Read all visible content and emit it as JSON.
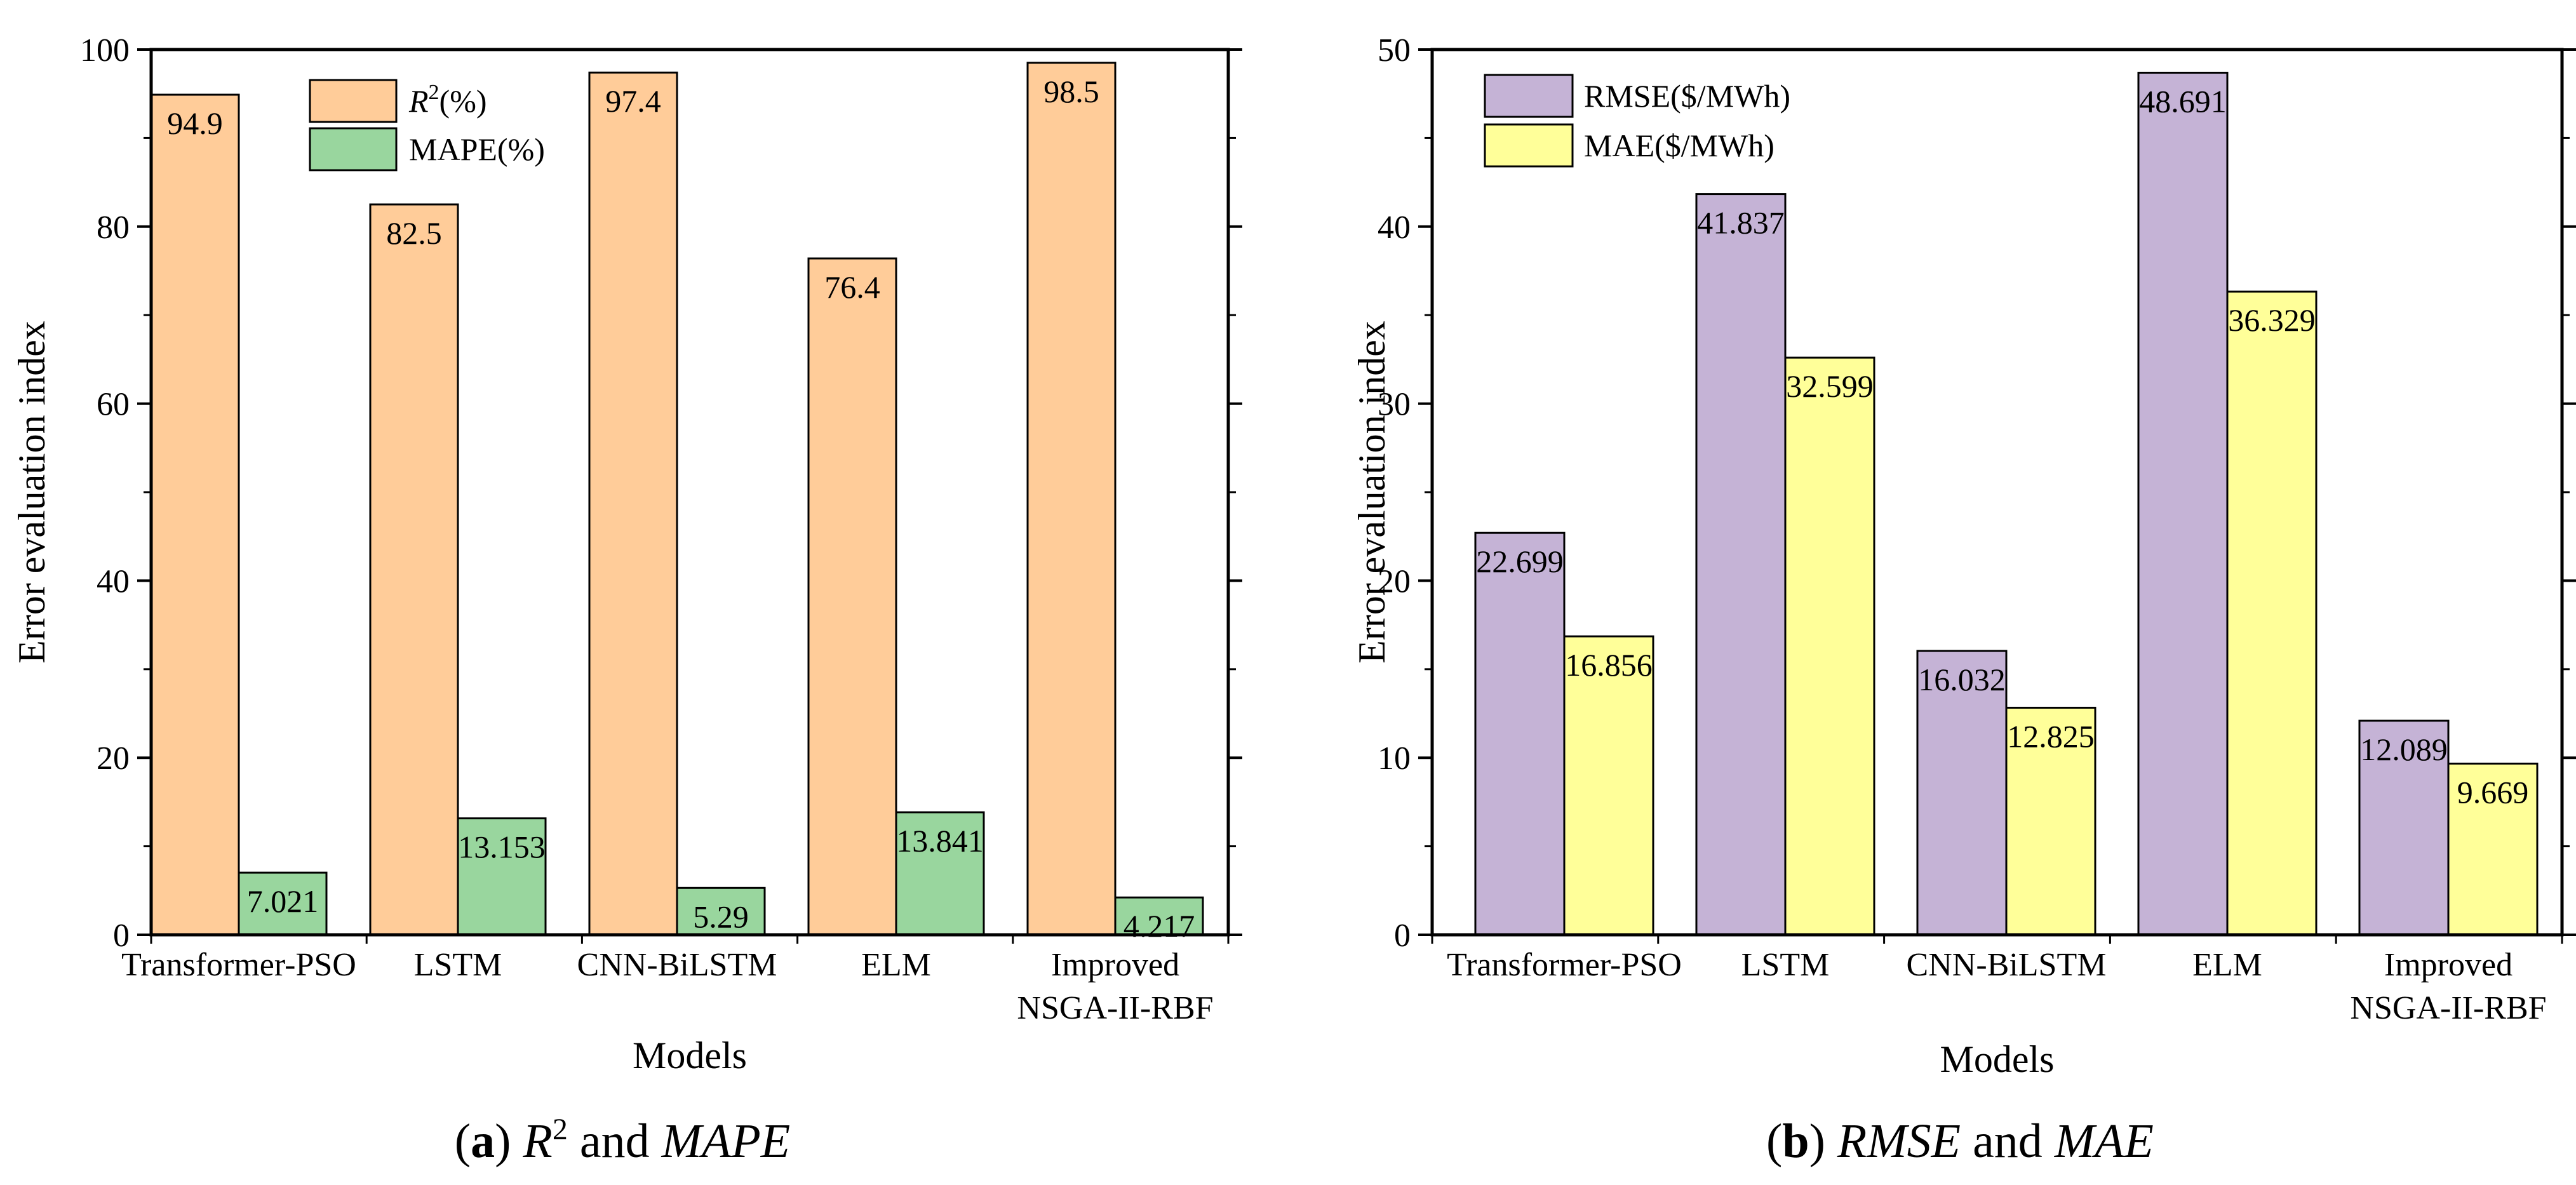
{
  "chart_data": [
    {
      "type": "bar",
      "panel": "a",
      "categories": [
        "Transformer-PSO",
        "LSTM",
        "CNN-BiLSTM",
        "ELM",
        "Improved\nNSGA-II-RBF"
      ],
      "series": [
        {
          "name": "R2(%)",
          "legend_base": "R",
          "legend_sup": "2",
          "legend_tail": "(%)",
          "color": "#FFCC99",
          "values": [
            94.9,
            82.5,
            97.4,
            76.4,
            98.5
          ],
          "labels": [
            "94.9",
            "82.5",
            "97.4",
            "76.4",
            "98.5"
          ]
        },
        {
          "name": "MAPE(%)",
          "color": "#99D69E",
          "values": [
            7.021,
            13.153,
            5.29,
            13.841,
            4.217
          ],
          "labels": [
            "7.021",
            "13.153",
            "5.29",
            "13.841",
            "4.217"
          ]
        }
      ],
      "xlabel": "Models",
      "ylabel": "Error evaluation index",
      "ylim": [
        0,
        100
      ],
      "yticks": [
        0,
        20,
        40,
        60,
        80,
        100
      ],
      "legend": "top-center",
      "caption": {
        "letter": "a",
        "pre": "R",
        "sup": "2",
        "mid": " and ",
        "italic": "MAPE"
      }
    },
    {
      "type": "bar",
      "panel": "b",
      "categories": [
        "Transformer-PSO",
        "LSTM",
        "CNN-BiLSTM",
        "ELM",
        "Improved\nNSGA-II-RBF"
      ],
      "series": [
        {
          "name": "RMSE($/MWh)",
          "color": "#C5B3D6",
          "values": [
            22.699,
            41.837,
            16.032,
            48.691,
            12.089
          ],
          "labels": [
            "22.699",
            "41.837",
            "16.032",
            "48.691",
            "12.089"
          ]
        },
        {
          "name": "MAE($/MWh)",
          "color": "#FFFF99",
          "values": [
            16.856,
            32.599,
            12.825,
            36.329,
            9.669
          ],
          "labels": [
            "16.856",
            "32.599",
            "12.825",
            "36.329",
            "9.669"
          ]
        }
      ],
      "xlabel": "Models",
      "ylabel": "Error evaluation index",
      "ylim": [
        0,
        50
      ],
      "yticks": [
        0,
        10,
        20,
        30,
        40,
        50
      ],
      "legend": "top-left",
      "caption": {
        "letter": "b",
        "italic1": "RMSE",
        "mid": " and ",
        "italic2": "MAE"
      }
    }
  ]
}
